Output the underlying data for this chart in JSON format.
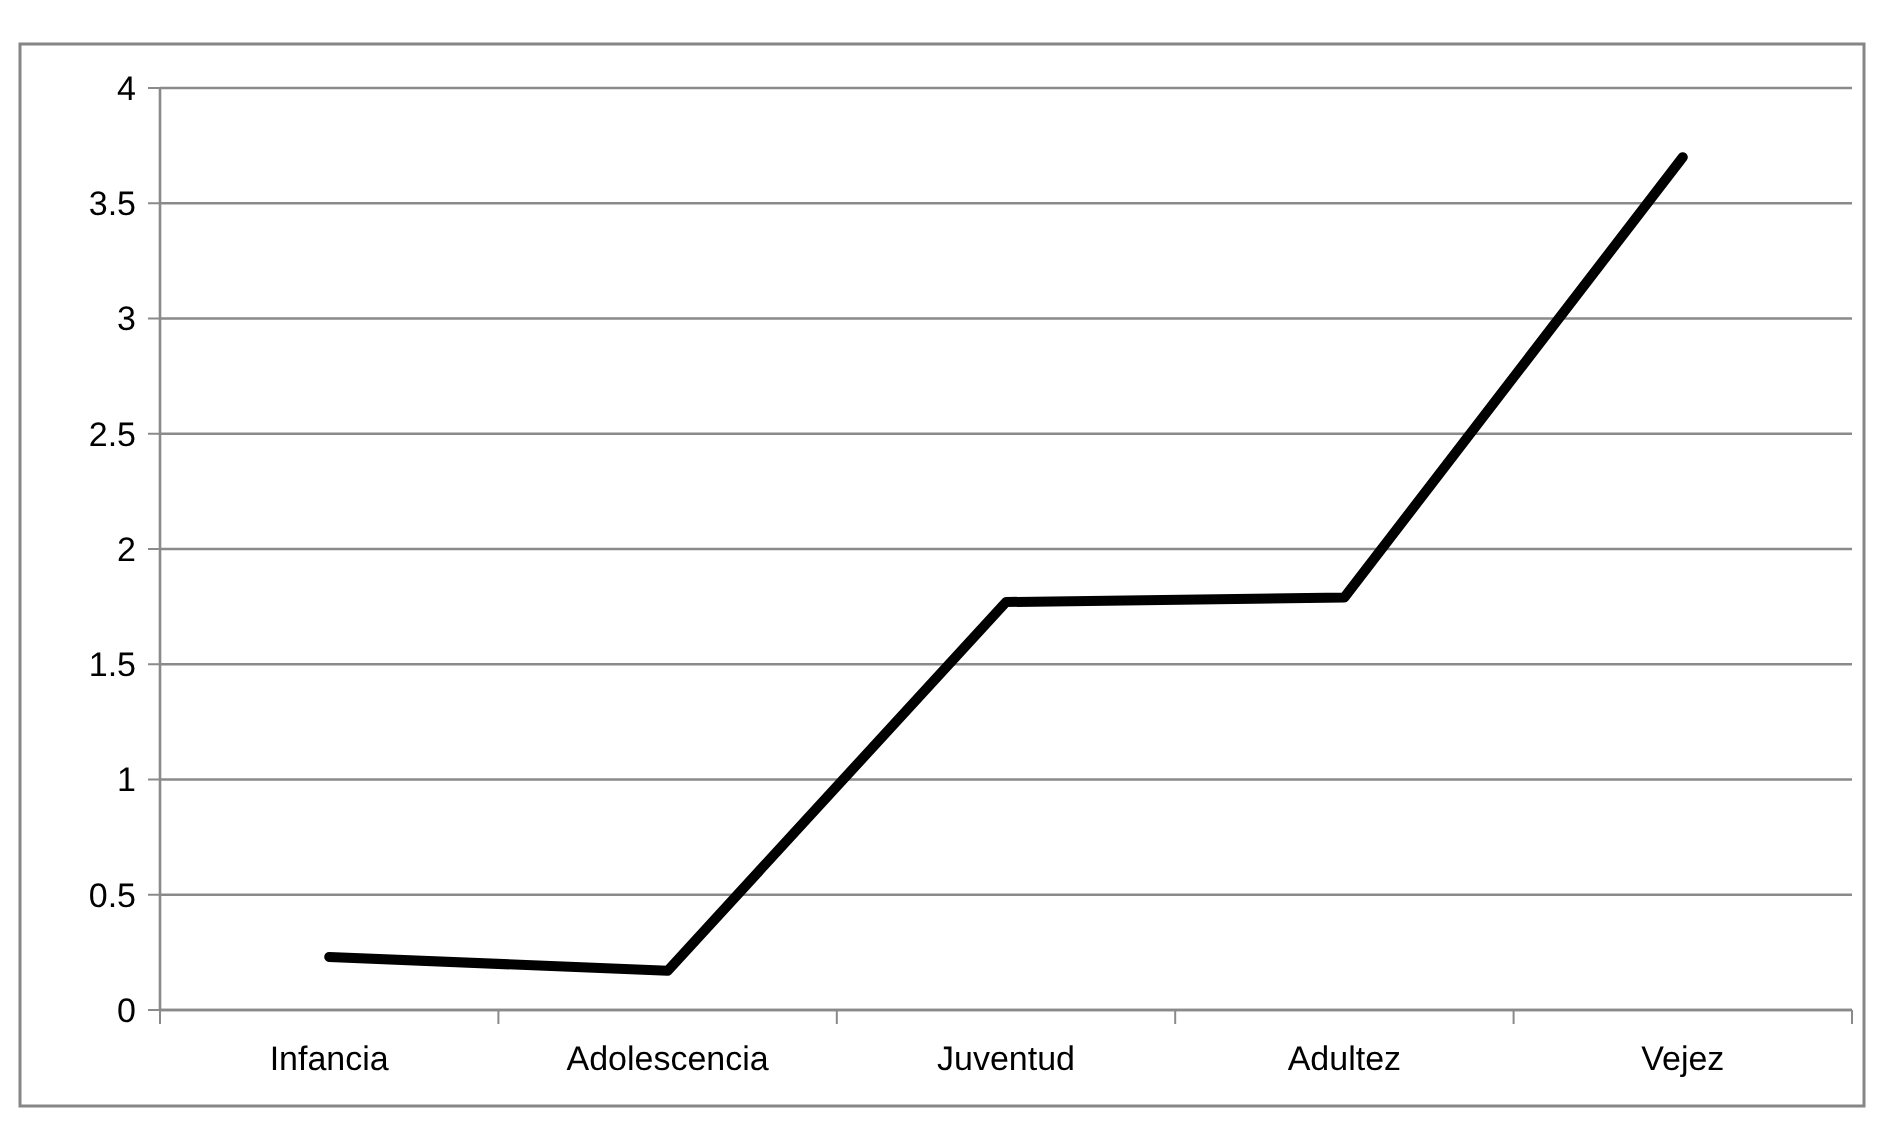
{
  "chart_data": {
    "type": "line",
    "categories": [
      "Infancia",
      "Adolescencia",
      "Juventud",
      "Adultez",
      "Vejez"
    ],
    "series": [
      {
        "color": "#000000",
        "values": [
          0.23,
          0.17,
          1.77,
          1.79,
          3.7
        ]
      }
    ],
    "ylim": [
      0,
      4
    ],
    "yticks": [
      0,
      0.5,
      1,
      1.5,
      2,
      2.5,
      3,
      3.5,
      4
    ],
    "grid": "y",
    "marker": "none",
    "line_style": "solid"
  }
}
